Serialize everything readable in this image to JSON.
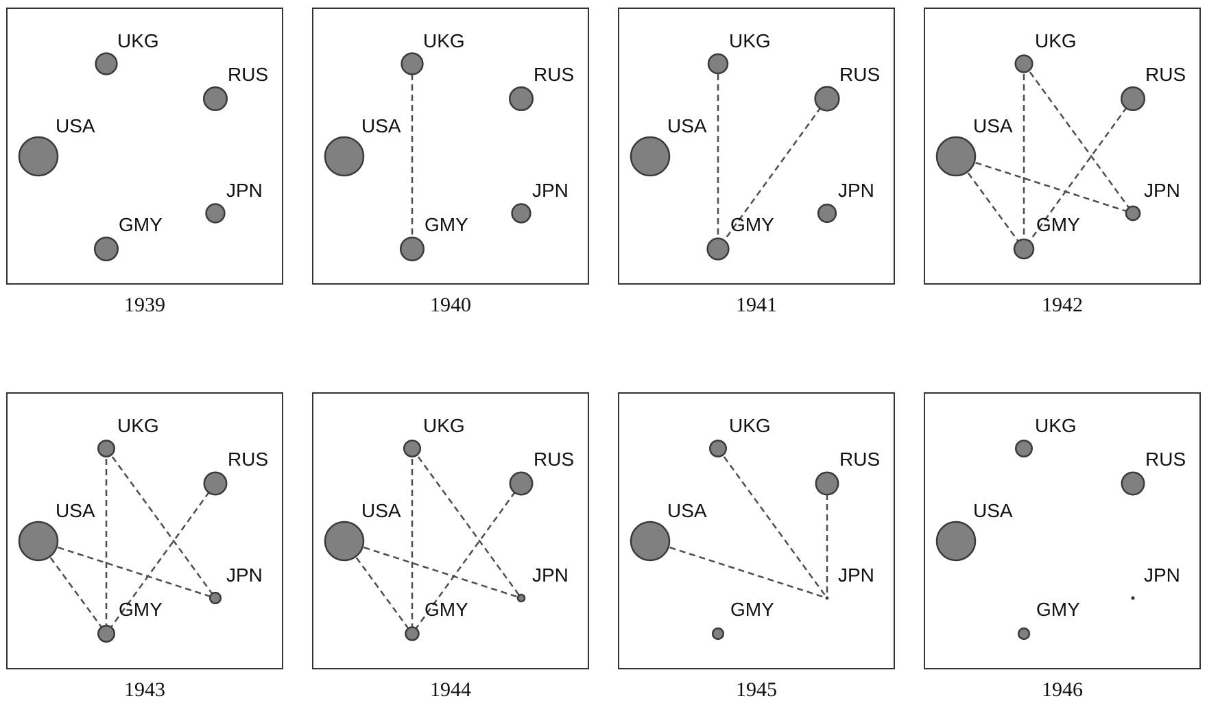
{
  "countries": [
    {
      "id": "USA",
      "label": "USA"
    },
    {
      "id": "UKG",
      "label": "UKG"
    },
    {
      "id": "RUS",
      "label": "RUS"
    },
    {
      "id": "JPN",
      "label": "JPN"
    },
    {
      "id": "GMY",
      "label": "GMY"
    }
  ],
  "panels": [
    {
      "year": "1939",
      "node_size": {
        "USA": 1.0,
        "UKG": 0.55,
        "RUS": 0.6,
        "JPN": 0.48,
        "GMY": 0.6
      },
      "links": []
    },
    {
      "year": "1940",
      "node_size": {
        "USA": 1.0,
        "UKG": 0.55,
        "RUS": 0.6,
        "JPN": 0.48,
        "GMY": 0.6
      },
      "links": [
        [
          "UKG",
          "GMY"
        ]
      ]
    },
    {
      "year": "1941",
      "node_size": {
        "USA": 1.0,
        "UKG": 0.5,
        "RUS": 0.62,
        "JPN": 0.46,
        "GMY": 0.55
      },
      "links": [
        [
          "UKG",
          "GMY"
        ],
        [
          "RUS",
          "GMY"
        ]
      ]
    },
    {
      "year": "1942",
      "node_size": {
        "USA": 1.0,
        "UKG": 0.44,
        "RUS": 0.6,
        "JPN": 0.36,
        "GMY": 0.5
      },
      "links": [
        [
          "UKG",
          "GMY"
        ],
        [
          "UKG",
          "JPN"
        ],
        [
          "RUS",
          "GMY"
        ],
        [
          "USA",
          "JPN"
        ],
        [
          "USA",
          "GMY"
        ]
      ]
    },
    {
      "year": "1943",
      "node_size": {
        "USA": 1.0,
        "UKG": 0.42,
        "RUS": 0.58,
        "JPN": 0.28,
        "GMY": 0.42
      },
      "links": [
        [
          "UKG",
          "GMY"
        ],
        [
          "UKG",
          "JPN"
        ],
        [
          "RUS",
          "GMY"
        ],
        [
          "USA",
          "JPN"
        ],
        [
          "USA",
          "GMY"
        ]
      ]
    },
    {
      "year": "1944",
      "node_size": {
        "USA": 1.0,
        "UKG": 0.42,
        "RUS": 0.58,
        "JPN": 0.18,
        "GMY": 0.34
      },
      "links": [
        [
          "UKG",
          "GMY"
        ],
        [
          "UKG",
          "JPN"
        ],
        [
          "RUS",
          "GMY"
        ],
        [
          "USA",
          "JPN"
        ],
        [
          "USA",
          "GMY"
        ]
      ]
    },
    {
      "year": "1945",
      "node_size": {
        "USA": 1.0,
        "UKG": 0.42,
        "RUS": 0.58,
        "JPN": 0.0,
        "GMY": 0.28
      },
      "links": [
        [
          "UKG",
          "JPN"
        ],
        [
          "RUS",
          "JPN"
        ],
        [
          "USA",
          "JPN"
        ]
      ]
    },
    {
      "year": "1946",
      "node_size": {
        "USA": 1.0,
        "UKG": 0.42,
        "RUS": 0.58,
        "JPN": 0.05,
        "GMY": 0.28
      },
      "links": []
    }
  ]
}
